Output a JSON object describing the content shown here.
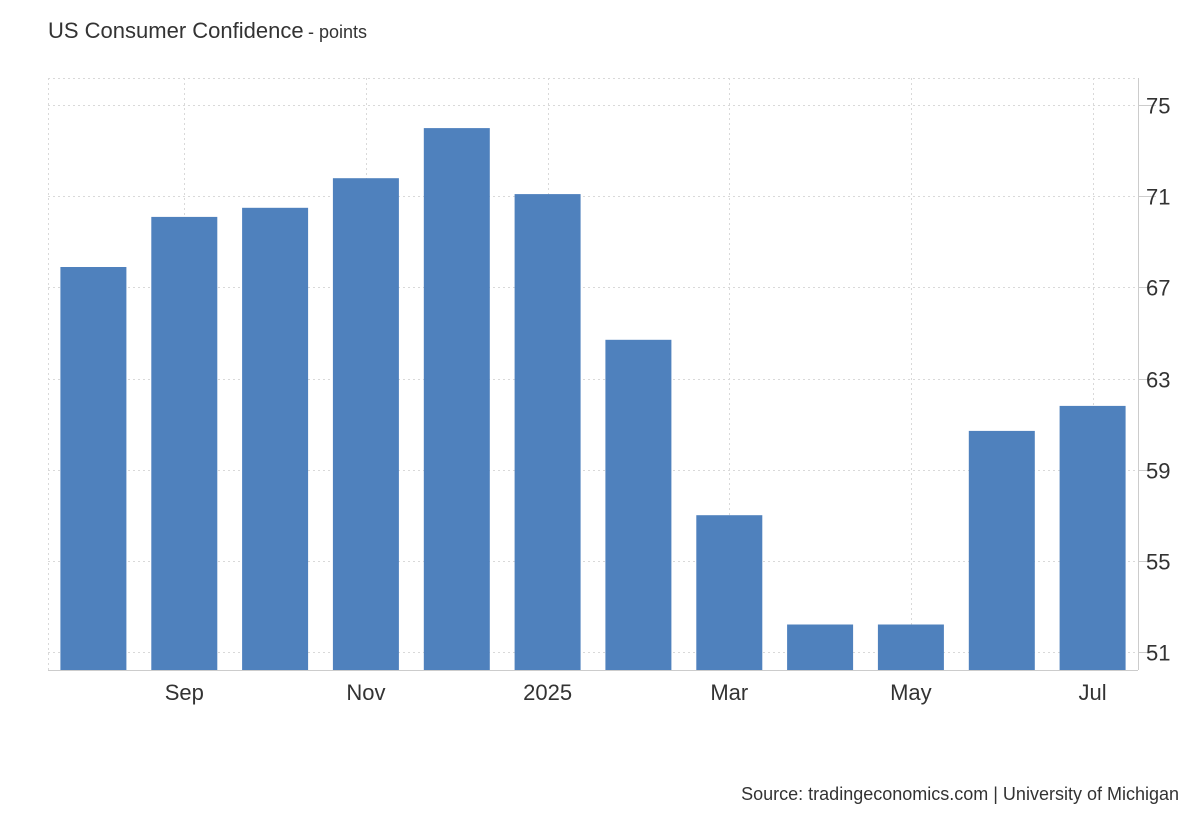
{
  "header": {
    "title": "US Consumer Confidence",
    "unit": "- points"
  },
  "source": "Source: tradingeconomics.com | University of Michigan",
  "colors": {
    "bar": "#4f81bd",
    "grid": "#d9d9d9",
    "axis": "#cccccc",
    "text": "#333333"
  },
  "chart_data": {
    "type": "bar",
    "title": "US Consumer Confidence",
    "ylabel": "points",
    "xlabel": "",
    "categories": [
      "2024-08",
      "2024-09",
      "2024-10",
      "2024-11",
      "2024-12",
      "2025-01",
      "2025-02",
      "2025-03",
      "2025-04",
      "2025-05",
      "2025-06",
      "2025-07"
    ],
    "values": [
      67.9,
      70.1,
      70.5,
      71.8,
      74.0,
      71.1,
      64.7,
      57.0,
      52.2,
      52.2,
      60.7,
      61.8
    ],
    "x_tick_labels": [
      {
        "category": "2024-09",
        "label": "Sep"
      },
      {
        "category": "2024-11",
        "label": "Nov"
      },
      {
        "category": "2025-01",
        "label": "2025"
      },
      {
        "category": "2025-03",
        "label": "Mar"
      },
      {
        "category": "2025-05",
        "label": "May"
      },
      {
        "category": "2025-07",
        "label": "Jul"
      }
    ],
    "y_ticks": [
      51,
      55,
      59,
      63,
      67,
      71,
      75
    ],
    "ylim": [
      50.2,
      76.2
    ],
    "y_axis_position": "right",
    "grid": true,
    "legend": "none"
  }
}
